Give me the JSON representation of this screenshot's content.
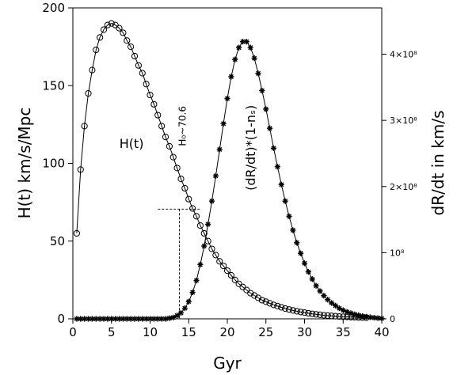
{
  "chart_data": {
    "type": "scatter",
    "xlabel": "Gyr",
    "ylabel": "H(t)   km/s/Mpc",
    "y2label": "dR/dt in km/s",
    "xlim": [
      0,
      40
    ],
    "ylim": [
      0,
      200
    ],
    "y2lim": [
      0,
      470000000
    ],
    "x_ticks": [
      "0",
      "5",
      "10",
      "15",
      "20",
      "25",
      "30",
      "35",
      "40"
    ],
    "y_ticks": [
      "0",
      "50",
      "100",
      "150",
      "200"
    ],
    "y2_ticks": [
      {
        "value": 0,
        "label": "0"
      },
      {
        "value": 100000000,
        "label": "10⁸"
      },
      {
        "value": 200000000,
        "label": "2×10⁸"
      },
      {
        "value": 300000000,
        "label": "3×10⁸"
      },
      {
        "value": 400000000,
        "label": "4×10⁸"
      }
    ],
    "series": [
      {
        "name": "H(t)",
        "axis": "left",
        "marker": "open-circle",
        "x": [
          0.5,
          1.0,
          1.5,
          2.0,
          2.5,
          3.0,
          3.5,
          4.0,
          4.5,
          5.0,
          5.5,
          6.0,
          6.5,
          7.0,
          7.5,
          8.0,
          8.5,
          9.0,
          9.5,
          10.0,
          10.5,
          11.0,
          11.5,
          12.0,
          12.5,
          13.0,
          13.5,
          14.0,
          14.5,
          15.0,
          15.5,
          16.0,
          16.5,
          17.0,
          17.5,
          18.0,
          18.5,
          19.0,
          19.5,
          20.0,
          20.5,
          21.0,
          21.5,
          22.0,
          22.5,
          23.0,
          23.5,
          24.0,
          24.5,
          25.0,
          25.5,
          26.0,
          26.5,
          27.0,
          27.5,
          28.0,
          28.5,
          29.0,
          29.5,
          30.0,
          30.5,
          31.0,
          31.5,
          32.0,
          32.5,
          33.0,
          33.5,
          34.0,
          34.5,
          35.0,
          35.5,
          36.0,
          36.5,
          37.0,
          37.5,
          38.0
        ],
        "y": [
          55,
          96,
          124,
          145,
          160,
          173,
          181,
          186,
          189,
          190,
          189,
          187,
          184,
          179,
          175,
          169,
          163,
          158,
          151,
          144,
          138,
          131,
          124,
          117,
          111,
          104,
          97,
          90,
          84,
          77,
          71,
          66,
          60,
          55,
          50,
          45,
          41,
          37,
          34,
          31,
          28,
          25,
          22.5,
          20.5,
          18.5,
          16.5,
          15,
          13.5,
          12,
          11,
          10,
          9,
          8.2,
          7.4,
          6.6,
          6,
          5.4,
          4.9,
          4.4,
          4,
          3.6,
          3.2,
          2.9,
          2.6,
          2.3,
          2.1,
          1.9,
          1.7,
          1.5,
          1.35,
          1.2,
          1.1,
          1.0,
          0.9,
          0.8,
          0.7
        ]
      },
      {
        "name": "(dR/dt)*(1-nₛ)",
        "axis": "right",
        "marker": "asterisk",
        "x": [
          0.5,
          1.0,
          1.5,
          2.0,
          2.5,
          3.0,
          3.5,
          4.0,
          4.5,
          5.0,
          5.5,
          6.0,
          6.5,
          7.0,
          7.5,
          8.0,
          8.5,
          9.0,
          9.5,
          10.0,
          10.5,
          11.0,
          11.5,
          12.0,
          12.5,
          13.0,
          13.5,
          14.0,
          14.5,
          15.0,
          15.5,
          16.0,
          16.5,
          17.0,
          17.5,
          18.0,
          18.5,
          19.0,
          19.5,
          20.0,
          20.5,
          21.0,
          21.5,
          22.0,
          22.5,
          23.0,
          23.5,
          24.0,
          24.5,
          25.0,
          25.5,
          26.0,
          26.5,
          27.0,
          27.5,
          28.0,
          28.5,
          29.0,
          29.5,
          30.0,
          30.5,
          31.0,
          31.5,
          32.0,
          32.5,
          33.0,
          33.5,
          34.0,
          34.5,
          35.0,
          35.5,
          36.0,
          36.5,
          37.0,
          37.5,
          38.0,
          38.5,
          39.0,
          39.5,
          40.0
        ],
        "y": [
          0,
          0,
          0,
          0,
          0,
          0,
          0,
          0,
          0,
          0,
          0,
          0,
          0,
          0,
          0,
          0,
          0,
          0,
          0,
          0,
          0,
          0,
          0,
          0,
          1000000,
          2000000,
          5000000,
          9000000,
          16000000,
          26000000,
          40000000,
          58000000,
          82000000,
          110000000,
          143000000,
          178000000,
          216000000,
          256000000,
          295000000,
          333000000,
          366000000,
          392000000,
          410000000,
          419000000,
          419000000,
          410000000,
          394000000,
          371000000,
          345000000,
          317000000,
          288000000,
          258000000,
          230000000,
          203000000,
          178000000,
          155000000,
          134000000,
          115000000,
          99000000,
          84000000,
          71000000,
          60000000,
          50000000,
          42000000,
          35000000,
          29000000,
          24000000,
          20000000,
          16000000,
          13000000,
          10500000,
          8500000,
          6800000,
          5400000,
          4200000,
          3200000,
          2400000,
          1700000,
          1100000,
          600000
        ]
      }
    ],
    "annotations": [
      {
        "text": "H(t)",
        "x": 7.6,
        "y": 110
      },
      {
        "text": "(dR/dt)*(1-nₛ)",
        "x": 23.6,
        "y": 110,
        "rotation": -90
      },
      {
        "text": "H₀~70.6",
        "x": 14.6,
        "y": 124,
        "rotation": -90
      }
    ],
    "reference_lines": {
      "vertical_x": 13.8,
      "horizontal_y": 70.6,
      "horizontal_x_range": [
        11.0,
        16.6
      ]
    },
    "grid": false,
    "legend": "none"
  }
}
